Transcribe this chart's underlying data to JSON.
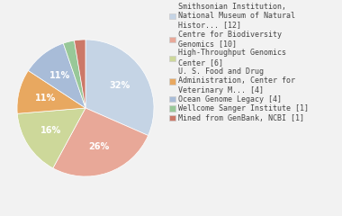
{
  "labels": [
    "Smithsonian Institution,\nNational Museum of Natural\nHistor... [12]",
    "Centre for Biodiversity\nGenomics [10]",
    "High-Throughput Genomics\nCenter [6]",
    "U. S. Food and Drug\nAdministration, Center for\nVeterinary M... [4]",
    "Ocean Genome Legacy [4]",
    "Wellcome Sanger Institute [1]",
    "Mined from GenBank, NCBI [1]"
  ],
  "values": [
    12,
    10,
    6,
    4,
    4,
    1,
    1
  ],
  "colors": [
    "#c5d4e5",
    "#e8a898",
    "#cdd89a",
    "#e8a860",
    "#a8bcd8",
    "#98c898",
    "#cc7868"
  ],
  "startangle": 90,
  "background_color": "#f2f2f2",
  "text_color": "#444444",
  "pct_fontsize": 7.0,
  "legend_fontsize": 6.0
}
